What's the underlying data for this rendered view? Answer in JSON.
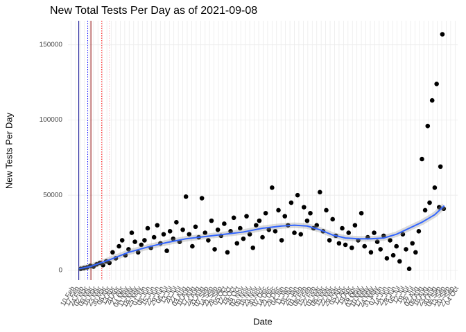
{
  "chart_data": {
    "type": "scatter",
    "title": "New Total Tests Per Day as of 2021-09-08",
    "x_label": "Date",
    "y_label": "New Tests Per Day",
    "xlim": [
      -5,
      606
    ],
    "ylim": [
      -6500,
      166000
    ],
    "yticks": [
      0,
      50000,
      100000,
      150000
    ],
    "grid": true,
    "xticks": [
      {
        "value": 0,
        "label": "10 Feb"
      },
      {
        "value": 7,
        "label": "17 Feb"
      },
      {
        "value": 14,
        "label": "24 Feb"
      },
      {
        "value": 21,
        "label": "02 Mar"
      },
      {
        "value": 28,
        "label": "09 Mar"
      },
      {
        "value": 35,
        "label": "16 Mar"
      },
      {
        "value": 42,
        "label": "23 Mar"
      },
      {
        "value": 49,
        "label": "30 Mar"
      },
      {
        "value": 56,
        "label": "06 Apr"
      },
      {
        "value": 63,
        "label": "13 Apr"
      },
      {
        "value": 70,
        "label": "20 Apr"
      },
      {
        "value": 77,
        "label": "27 Apr"
      },
      {
        "value": 84,
        "label": "04 May"
      },
      {
        "value": 91,
        "label": "11 May"
      },
      {
        "value": 98,
        "label": "18 May"
      },
      {
        "value": 105,
        "label": "25 May"
      },
      {
        "value": 112,
        "label": "01 Jun"
      },
      {
        "value": 119,
        "label": "08 Jun"
      },
      {
        "value": 126,
        "label": "15 Jun"
      },
      {
        "value": 133,
        "label": "22 Jun"
      },
      {
        "value": 140,
        "label": "29 Jun"
      },
      {
        "value": 147,
        "label": "06 Jul"
      },
      {
        "value": 154,
        "label": "13 Jul"
      },
      {
        "value": 161,
        "label": "20 Jul"
      },
      {
        "value": 168,
        "label": "27 Jul"
      },
      {
        "value": 175,
        "label": "03 Aug"
      },
      {
        "value": 182,
        "label": "10 Aug"
      },
      {
        "value": 189,
        "label": "17 Aug"
      },
      {
        "value": 196,
        "label": "24 Aug"
      },
      {
        "value": 203,
        "label": "31 Aug"
      },
      {
        "value": 210,
        "label": "07 Sep"
      },
      {
        "value": 217,
        "label": "14 Sep"
      },
      {
        "value": 224,
        "label": "21 Sep"
      },
      {
        "value": 231,
        "label": "28 Sep"
      },
      {
        "value": 238,
        "label": "05 Oct"
      },
      {
        "value": 245,
        "label": "12 Oct"
      },
      {
        "value": 252,
        "label": "19 Oct"
      },
      {
        "value": 259,
        "label": "26 Oct"
      },
      {
        "value": 266,
        "label": "02 Nov"
      },
      {
        "value": 273,
        "label": "09 Nov"
      },
      {
        "value": 280,
        "label": "16 Nov"
      },
      {
        "value": 287,
        "label": "23 Nov"
      },
      {
        "value": 294,
        "label": "30 Nov"
      },
      {
        "value": 301,
        "label": "07 Dec"
      },
      {
        "value": 308,
        "label": "14 Dec"
      },
      {
        "value": 315,
        "label": "21 Dec"
      },
      {
        "value": 322,
        "label": "28 Dec"
      },
      {
        "value": 329,
        "label": "04 Jan"
      },
      {
        "value": 336,
        "label": "11 Jan"
      },
      {
        "value": 343,
        "label": "18 Jan"
      },
      {
        "value": 350,
        "label": "25 Jan"
      },
      {
        "value": 357,
        "label": "01 Feb"
      },
      {
        "value": 364,
        "label": "08 Feb"
      },
      {
        "value": 371,
        "label": "15 Feb"
      },
      {
        "value": 378,
        "label": "22 Feb"
      },
      {
        "value": 385,
        "label": "01 Mar"
      },
      {
        "value": 392,
        "label": "08 Mar"
      },
      {
        "value": 399,
        "label": "15 Mar"
      },
      {
        "value": 406,
        "label": "22 Mar"
      },
      {
        "value": 413,
        "label": "29 Mar"
      },
      {
        "value": 420,
        "label": "05 Apr"
      },
      {
        "value": 427,
        "label": "12 Apr"
      },
      {
        "value": 434,
        "label": "19 Apr"
      },
      {
        "value": 441,
        "label": "26 Apr"
      },
      {
        "value": 448,
        "label": "03 May"
      },
      {
        "value": 455,
        "label": "10 May"
      },
      {
        "value": 462,
        "label": "17 May"
      },
      {
        "value": 469,
        "label": "24 May"
      },
      {
        "value": 476,
        "label": "31 May"
      },
      {
        "value": 483,
        "label": "07 Jun"
      },
      {
        "value": 490,
        "label": "14 Jun"
      },
      {
        "value": 497,
        "label": "21 Jun"
      },
      {
        "value": 504,
        "label": "28 Jun"
      },
      {
        "value": 511,
        "label": "05 Jul"
      },
      {
        "value": 518,
        "label": "12 Jul"
      },
      {
        "value": 525,
        "label": "19 Jul"
      },
      {
        "value": 532,
        "label": "26 Jul"
      },
      {
        "value": 539,
        "label": "02 Aug"
      },
      {
        "value": 546,
        "label": "09 Aug"
      },
      {
        "value": 553,
        "label": "16 Aug"
      },
      {
        "value": 560,
        "label": "23 Aug"
      },
      {
        "value": 567,
        "label": "30 Aug"
      },
      {
        "value": 574,
        "label": "06 Sep"
      },
      {
        "value": 581,
        "label": "13 Sep"
      },
      {
        "value": 588,
        "label": "20 Sep"
      },
      {
        "value": 595,
        "label": "27 Sep"
      },
      {
        "value": 602,
        "label": "04 Oct"
      }
    ],
    "vlines": [
      {
        "x": 12,
        "color": "#00008b",
        "dash": false
      },
      {
        "x": 26,
        "color": "#0000ff",
        "dash": true
      },
      {
        "x": 31,
        "color": "#8b0000",
        "dash": false
      },
      {
        "x": 48,
        "color": "#ff0000",
        "dash": true
      },
      {
        "x": 60,
        "color": "#ffb6c1",
        "dash": true
      }
    ],
    "series": [
      {
        "kind": "points",
        "color": "#000000",
        "x": [
          15,
          20,
          25,
          30,
          35,
          40,
          45,
          50,
          55,
          60,
          65,
          70,
          75,
          80,
          85,
          90,
          95,
          100,
          105,
          110,
          115,
          120,
          125,
          130,
          135,
          140,
          145,
          150,
          155,
          160,
          165,
          170,
          175,
          180,
          185,
          190,
          195,
          200,
          205,
          210,
          215,
          220,
          225,
          230,
          235,
          240,
          245,
          250,
          255,
          260,
          265,
          270,
          275,
          280,
          285,
          290,
          295,
          300,
          305,
          310,
          315,
          320,
          325,
          330,
          335,
          340,
          345,
          350,
          355,
          360,
          365,
          370,
          375,
          380,
          385,
          390,
          395,
          400,
          405,
          410,
          415,
          420,
          425,
          430,
          435,
          440,
          445,
          450,
          455,
          460,
          465,
          470,
          475,
          480,
          485,
          490,
          495,
          500,
          505,
          510,
          515,
          520,
          525,
          530,
          535,
          540,
          545,
          550,
          555,
          559,
          562,
          566,
          570,
          573,
          577,
          579,
          582,
          584
        ],
        "values": [
          1000,
          1500,
          2000,
          3000,
          2500,
          4000,
          5000,
          3500,
          6000,
          5000,
          12000,
          8000,
          16000,
          20000,
          10000,
          14000,
          25000,
          19000,
          12000,
          17000,
          20000,
          28000,
          15000,
          22000,
          30000,
          18000,
          24000,
          13000,
          26000,
          21000,
          32000,
          19000,
          27000,
          49000,
          24000,
          16000,
          29000,
          22000,
          48000,
          25000,
          20000,
          33000,
          14000,
          27000,
          23000,
          31000,
          12000,
          26000,
          35000,
          18000,
          28000,
          21000,
          36000,
          24000,
          15000,
          30000,
          33000,
          22000,
          38000,
          27000,
          55000,
          26000,
          40000,
          20000,
          36000,
          30000,
          45000,
          25000,
          50000,
          24000,
          42000,
          33000,
          38000,
          28000,
          30000,
          52000,
          26000,
          40000,
          20000,
          34000,
          23000,
          18000,
          28000,
          17000,
          25000,
          15000,
          30000,
          20000,
          38000,
          16000,
          22000,
          12000,
          25000,
          19000,
          14000,
          23000,
          8000,
          20000,
          10000,
          16000,
          6000,
          24000,
          14000,
          1000,
          18000,
          12000,
          26000,
          74000,
          40000,
          96000,
          45000,
          113000,
          55000,
          124000,
          42000,
          69000,
          157000,
          41000
        ]
      },
      {
        "kind": "smooth",
        "color": "#3366ff",
        "x": [
          12,
          30,
          60,
          90,
          120,
          150,
          180,
          210,
          240,
          270,
          300,
          330,
          350,
          370,
          390,
          410,
          430,
          450,
          470,
          490,
          510,
          530,
          550,
          570,
          585
        ],
        "values": [
          1000,
          2500,
          7000,
          12000,
          15500,
          18500,
          21000,
          22500,
          24000,
          25500,
          28000,
          29500,
          30000,
          29500,
          27000,
          23500,
          21500,
          21000,
          21000,
          21500,
          24000,
          28000,
          32000,
          37000,
          43000
        ]
      }
    ]
  }
}
